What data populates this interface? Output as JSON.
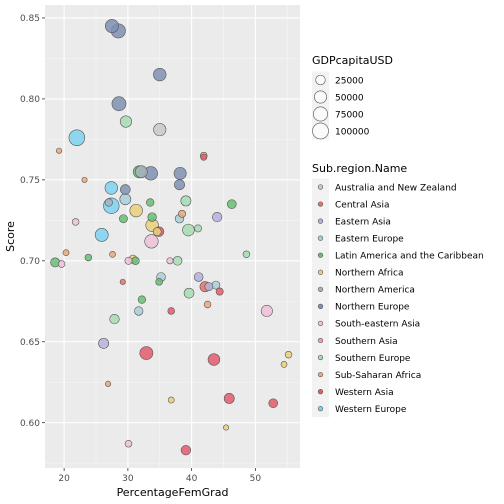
{
  "chart_data": {
    "type": "scatter",
    "xlabel": "PercentageFemGrad",
    "ylabel": "Score",
    "xlim": [
      17,
      57
    ],
    "ylim": [
      0.572,
      0.858
    ],
    "x_ticks": [
      "20",
      "30",
      "40",
      "50"
    ],
    "y_ticks": [
      "0.60",
      "0.65",
      "0.70",
      "0.75",
      "0.80",
      "0.85"
    ],
    "grid": true,
    "legend_position": "right",
    "size_legend": {
      "title": "GDPcapitaUSD",
      "labels": [
        "25000",
        "50000",
        "75000",
        "100000"
      ],
      "values": [
        25000,
        50000,
        75000,
        100000
      ]
    },
    "color_legend": {
      "title": "Sub.region.Name",
      "entries": [
        {
          "name": "Australia and New Zealand",
          "color": "#c9c9c9"
        },
        {
          "name": "Central Asia",
          "color": "#e0746b"
        },
        {
          "name": "Eastern Asia",
          "color": "#b4b2dc"
        },
        {
          "name": "Eastern Europe",
          "color": "#a9ced8"
        },
        {
          "name": "Latin America and the Caribbean",
          "color": "#66bf73"
        },
        {
          "name": "Northern Africa",
          "color": "#ead07a"
        },
        {
          "name": "Northern America",
          "color": "#a7b1c1"
        },
        {
          "name": "Northern Europe",
          "color": "#7e90b3"
        },
        {
          "name": "South-eastern Asia",
          "color": "#f0c1d9"
        },
        {
          "name": "Southern Asia",
          "color": "#f19db1"
        },
        {
          "name": "Southern Europe",
          "color": "#a6dcb3"
        },
        {
          "name": "Sub-Saharan Africa",
          "color": "#eba778"
        },
        {
          "name": "Western Asia",
          "color": "#e25c6c"
        },
        {
          "name": "Western Europe",
          "color": "#7ed2f1"
        }
      ]
    },
    "series": [
      {
        "x": 27.5,
        "y": 0.845,
        "gdp": 62000,
        "group": "Northern Europe"
      },
      {
        "x": 28.5,
        "y": 0.842,
        "gdp": 75000,
        "group": "Northern Europe"
      },
      {
        "x": 35.0,
        "y": 0.815,
        "gdp": 55000,
        "group": "Northern Europe"
      },
      {
        "x": 28.6,
        "y": 0.797,
        "gdp": 72000,
        "group": "Northern Europe"
      },
      {
        "x": 35.0,
        "y": 0.781,
        "gdp": 52000,
        "group": "Australia and New Zealand"
      },
      {
        "x": 29.7,
        "y": 0.786,
        "gdp": 42000,
        "group": "Southern Europe"
      },
      {
        "x": 22.0,
        "y": 0.776,
        "gdp": 98000,
        "group": "Western Europe"
      },
      {
        "x": 19.2,
        "y": 0.768,
        "gdp": 3000,
        "group": "Sub-Saharan Africa"
      },
      {
        "x": 23.2,
        "y": 0.75,
        "gdp": 3000,
        "group": "Sub-Saharan Africa"
      },
      {
        "x": 41.9,
        "y": 0.765,
        "gdp": 8000,
        "group": "Sub-Saharan Africa"
      },
      {
        "x": 41.9,
        "y": 0.764,
        "gdp": 6000,
        "group": "Western Asia"
      },
      {
        "x": 31.8,
        "y": 0.755,
        "gdp": 50000,
        "group": "Latin America and the Caribbean"
      },
      {
        "x": 32.1,
        "y": 0.755,
        "gdp": 48000,
        "group": "Northern America"
      },
      {
        "x": 33.6,
        "y": 0.754,
        "gdp": 65000,
        "group": "Northern Europe"
      },
      {
        "x": 38.2,
        "y": 0.754,
        "gdp": 50000,
        "group": "Northern Europe"
      },
      {
        "x": 38.1,
        "y": 0.747,
        "gdp": 30000,
        "group": "Northern Europe"
      },
      {
        "x": 27.4,
        "y": 0.745,
        "gdp": 55000,
        "group": "Western Europe"
      },
      {
        "x": 29.6,
        "y": 0.744,
        "gdp": 28000,
        "group": "Northern Europe"
      },
      {
        "x": 29.6,
        "y": 0.738,
        "gdp": 38000,
        "group": "Eastern Europe"
      },
      {
        "x": 33.5,
        "y": 0.736,
        "gdp": 12000,
        "group": "Latin America and the Caribbean"
      },
      {
        "x": 27.0,
        "y": 0.736,
        "gdp": 12000,
        "group": "Northern America"
      },
      {
        "x": 27.4,
        "y": 0.734,
        "gdp": 95000,
        "group": "Western Europe"
      },
      {
        "x": 39.1,
        "y": 0.737,
        "gdp": 30000,
        "group": "Southern Europe"
      },
      {
        "x": 46.3,
        "y": 0.735,
        "gdp": 20000,
        "group": "Latin America and the Caribbean"
      },
      {
        "x": 31.3,
        "y": 0.731,
        "gdp": 55000,
        "group": "Northern Africa"
      },
      {
        "x": 38.5,
        "y": 0.729,
        "gdp": 10000,
        "group": "Sub-Saharan Africa"
      },
      {
        "x": 38.1,
        "y": 0.726,
        "gdp": 18000,
        "group": "Eastern Europe"
      },
      {
        "x": 44.0,
        "y": 0.727,
        "gdp": 25000,
        "group": "Eastern Asia"
      },
      {
        "x": 33.8,
        "y": 0.727,
        "gdp": 18000,
        "group": "Latin America and the Caribbean"
      },
      {
        "x": 29.3,
        "y": 0.726,
        "gdp": 15000,
        "group": "Latin America and the Caribbean"
      },
      {
        "x": 21.8,
        "y": 0.724,
        "gdp": 8000,
        "group": "South-eastern Asia"
      },
      {
        "x": 33.8,
        "y": 0.722,
        "gdp": 55000,
        "group": "Northern Africa"
      },
      {
        "x": 39.5,
        "y": 0.719,
        "gdp": 45000,
        "group": "Southern Europe"
      },
      {
        "x": 34.9,
        "y": 0.718,
        "gdp": 25000,
        "group": "Western Asia"
      },
      {
        "x": 34.6,
        "y": 0.718,
        "gdp": 15000,
        "group": "Northern Africa"
      },
      {
        "x": 41.0,
        "y": 0.72,
        "gdp": 10000,
        "group": "Southern Europe"
      },
      {
        "x": 25.9,
        "y": 0.716,
        "gdp": 60000,
        "group": "Western Europe"
      },
      {
        "x": 33.7,
        "y": 0.712,
        "gdp": 65000,
        "group": "South-eastern Asia"
      },
      {
        "x": 20.3,
        "y": 0.705,
        "gdp": 5000,
        "group": "Sub-Saharan Africa"
      },
      {
        "x": 27.6,
        "y": 0.704,
        "gdp": 5000,
        "group": "Sub-Saharan Africa"
      },
      {
        "x": 30.8,
        "y": 0.701,
        "gdp": 15000,
        "group": "Northern Africa"
      },
      {
        "x": 31.2,
        "y": 0.7,
        "gdp": 12000,
        "group": "Latin America and the Caribbean"
      },
      {
        "x": 30.1,
        "y": 0.7,
        "gdp": 10000,
        "group": "South-eastern Asia"
      },
      {
        "x": 23.8,
        "y": 0.702,
        "gdp": 8000,
        "group": "Latin America and the Caribbean"
      },
      {
        "x": 18.6,
        "y": 0.699,
        "gdp": 22000,
        "group": "Latin America and the Caribbean"
      },
      {
        "x": 19.6,
        "y": 0.698,
        "gdp": 8000,
        "group": "South-eastern Asia"
      },
      {
        "x": 36.6,
        "y": 0.7,
        "gdp": 6000,
        "group": "South-eastern Asia"
      },
      {
        "x": 37.8,
        "y": 0.7,
        "gdp": 20000,
        "group": "Southern Europe"
      },
      {
        "x": 48.6,
        "y": 0.704,
        "gdp": 8000,
        "group": "Southern Europe"
      },
      {
        "x": 35.2,
        "y": 0.69,
        "gdp": 20000,
        "group": "Eastern Europe"
      },
      {
        "x": 34.9,
        "y": 0.687,
        "gdp": 8000,
        "group": "Latin America and the Caribbean"
      },
      {
        "x": 29.2,
        "y": 0.687,
        "gdp": 3000,
        "group": "Central Asia"
      },
      {
        "x": 41.1,
        "y": 0.69,
        "gdp": 20000,
        "group": "Eastern Asia"
      },
      {
        "x": 43.8,
        "y": 0.685,
        "gdp": 15000,
        "group": "Eastern Europe"
      },
      {
        "x": 42.1,
        "y": 0.684,
        "gdp": 30000,
        "group": "Central Asia"
      },
      {
        "x": 42.7,
        "y": 0.684,
        "gdp": 15000,
        "group": "Eastern Asia"
      },
      {
        "x": 44.4,
        "y": 0.681,
        "gdp": 10000,
        "group": "Western Asia"
      },
      {
        "x": 39.6,
        "y": 0.68,
        "gdp": 28000,
        "group": "Southern Europe"
      },
      {
        "x": 32.2,
        "y": 0.676,
        "gdp": 12000,
        "group": "Latin America and the Caribbean"
      },
      {
        "x": 42.5,
        "y": 0.673,
        "gdp": 8000,
        "group": "Sub-Saharan Africa"
      },
      {
        "x": 31.7,
        "y": 0.669,
        "gdp": 18000,
        "group": "Eastern Europe"
      },
      {
        "x": 36.8,
        "y": 0.669,
        "gdp": 8000,
        "group": "Western Asia"
      },
      {
        "x": 51.8,
        "y": 0.669,
        "gdp": 40000,
        "group": "South-eastern Asia"
      },
      {
        "x": 27.9,
        "y": 0.664,
        "gdp": 25000,
        "group": "Southern Europe"
      },
      {
        "x": 26.2,
        "y": 0.649,
        "gdp": 30000,
        "group": "Eastern Asia"
      },
      {
        "x": 32.9,
        "y": 0.643,
        "gdp": 60000,
        "group": "Western Asia"
      },
      {
        "x": 55.2,
        "y": 0.642,
        "gdp": 8000,
        "group": "Northern Africa"
      },
      {
        "x": 43.5,
        "y": 0.639,
        "gdp": 45000,
        "group": "Western Asia"
      },
      {
        "x": 54.5,
        "y": 0.636,
        "gdp": 5000,
        "group": "Northern Africa"
      },
      {
        "x": 26.9,
        "y": 0.624,
        "gdp": 3000,
        "group": "Sub-Saharan Africa"
      },
      {
        "x": 45.9,
        "y": 0.615,
        "gdp": 30000,
        "group": "Western Asia"
      },
      {
        "x": 36.8,
        "y": 0.614,
        "gdp": 5000,
        "group": "Northern Africa"
      },
      {
        "x": 52.8,
        "y": 0.612,
        "gdp": 20000,
        "group": "Western Asia"
      },
      {
        "x": 45.4,
        "y": 0.597,
        "gdp": 3000,
        "group": "Northern Africa"
      },
      {
        "x": 30.1,
        "y": 0.587,
        "gdp": 8000,
        "group": "South-eastern Asia"
      },
      {
        "x": 39.1,
        "y": 0.583,
        "gdp": 25000,
        "group": "Western Asia"
      }
    ]
  }
}
